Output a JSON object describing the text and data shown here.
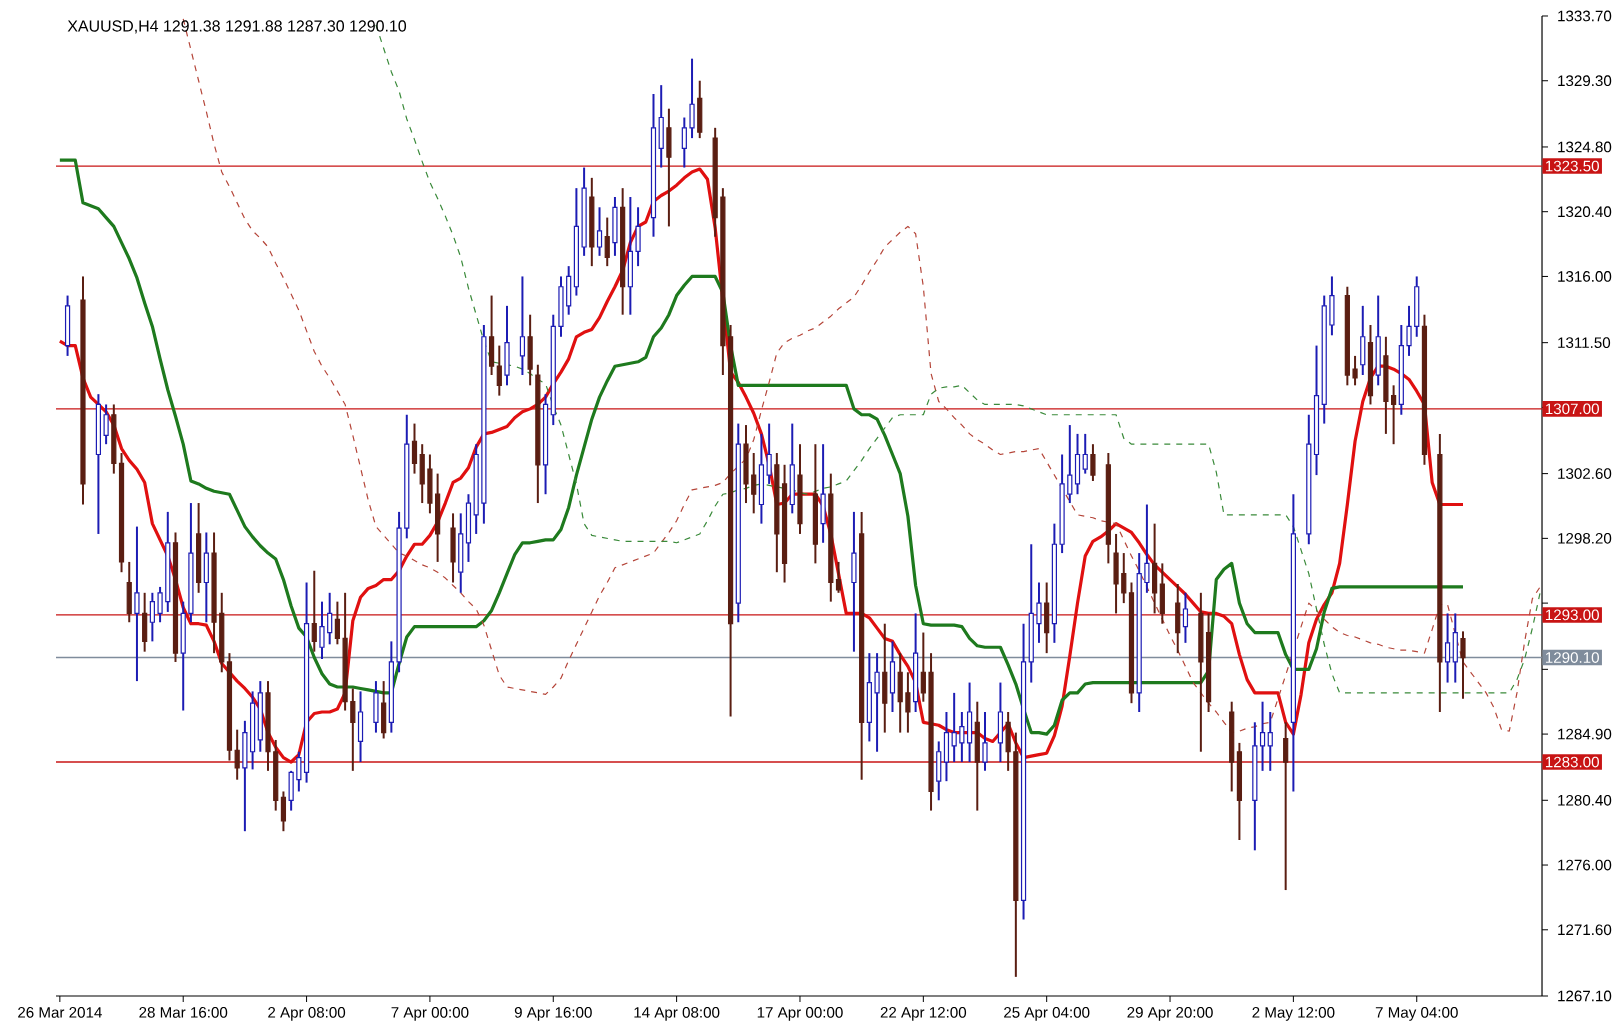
{
  "chart_data": {
    "type": "candlestick",
    "title": "XAUUSD,H4  1291.38 1291.88 1287.30 1290.10",
    "categories": [
      "26 Mar 2014",
      null,
      null,
      null,
      null,
      null,
      null,
      null,
      null,
      null,
      null,
      null,
      null,
      null,
      null,
      null,
      "28 Mar 16:00",
      null,
      null,
      null,
      null,
      null,
      null,
      null,
      null,
      null,
      null,
      null,
      null,
      null,
      null,
      null,
      "2 Apr 08:00",
      null,
      null,
      null,
      null,
      null,
      null,
      null,
      null,
      null,
      null,
      null,
      null,
      null,
      null,
      null,
      "7 Apr 00:00",
      null,
      null,
      null,
      null,
      null,
      null,
      null,
      null,
      null,
      null,
      null,
      null,
      null,
      null,
      null,
      "9 Apr 16:00",
      null,
      null,
      null,
      null,
      null,
      null,
      null,
      null,
      null,
      null,
      null,
      null,
      null,
      null,
      null,
      "14 Apr 08:00",
      null,
      null,
      null,
      null,
      null,
      null,
      null,
      null,
      null,
      null,
      null,
      null,
      null,
      null,
      null,
      "17 Apr 00:00",
      null,
      null,
      null,
      null,
      null,
      null,
      null,
      null,
      null,
      null,
      null,
      null,
      null,
      null,
      null,
      "22 Apr 12:00",
      null,
      null,
      null,
      null,
      null,
      null,
      null,
      null,
      null,
      null,
      null,
      null,
      null,
      null,
      null,
      "25 Apr 04:00",
      null,
      null,
      null,
      null,
      null,
      null,
      null,
      null,
      null,
      null,
      null,
      null,
      null,
      null,
      null,
      "29 Apr 20:00",
      null,
      null,
      null,
      null,
      null,
      null,
      null,
      null,
      null,
      null,
      null,
      null,
      null,
      null,
      null,
      "2 May 12:00",
      null,
      null,
      null,
      null,
      null,
      null,
      null,
      null,
      null,
      null,
      null,
      null,
      null,
      null,
      null,
      "7 May 04:00",
      null,
      null,
      null,
      null,
      null,
      null,
      null,
      null,
      null,
      null,
      null,
      null,
      null,
      null,
      null,
      null
    ],
    "ylim": [
      1267.1,
      1333.7
    ],
    "yticks": [
      {
        "value": 1267.1,
        "label": "1267.10"
      },
      {
        "value": 1271.6,
        "label": "1271.60"
      },
      {
        "value": 1276.0,
        "label": "1276.00"
      },
      {
        "value": 1280.4,
        "label": "1280.40"
      },
      {
        "value": 1284.9,
        "label": "1284.90"
      },
      {
        "value": 1289.3,
        "label": null
      },
      {
        "value": 1293.8,
        "label": null
      },
      {
        "value": 1298.2,
        "label": "1298.20"
      },
      {
        "value": 1302.6,
        "label": "1302.60"
      },
      {
        "value": 1307.1,
        "label": null
      },
      {
        "value": 1311.5,
        "label": "1311.50"
      },
      {
        "value": 1316.0,
        "label": "1316.00"
      },
      {
        "value": 1320.4,
        "label": "1320.40"
      },
      {
        "value": 1324.8,
        "label": "1324.80"
      },
      {
        "value": 1329.3,
        "label": "1329.30"
      },
      {
        "value": 1333.7,
        "label": "1333.70"
      }
    ],
    "ref_lines": [
      {
        "axis": "y",
        "value": 1323.5,
        "label": "1323.50",
        "color": "#c81414"
      },
      {
        "axis": "y",
        "value": 1307.0,
        "label": "1307.00",
        "color": "#c81414"
      },
      {
        "axis": "y",
        "value": 1293.0,
        "label": "1293.00",
        "color": "#c81414"
      },
      {
        "axis": "y",
        "value": 1283.0,
        "label": "1283.00",
        "color": "#c81414"
      },
      {
        "axis": "y",
        "value": 1290.1,
        "label": "1290.10",
        "color": "#7f8c9c"
      }
    ],
    "series": [
      {
        "color": "#1c1cb4",
        "ohlc": [
          null,
          [
            1311.3,
            1314.7,
            1310.6,
            1314.0
          ],
          null,
          null,
          null,
          [
            1303.9,
            1308.0,
            1298.5,
            1307.3
          ],
          [
            1305.2,
            1307.3,
            1304.6,
            1306.6
          ],
          null,
          null,
          null,
          [
            1293.1,
            1299.0,
            1288.5,
            1294.5
          ],
          null,
          [
            1292.5,
            1294.5,
            1291.2,
            1293.9
          ],
          [
            1293.1,
            1294.9,
            1292.5,
            1294.5
          ],
          [
            1293.9,
            1300.0,
            1293.2,
            1297.9
          ],
          null,
          [
            1290.4,
            1293.9,
            1286.5,
            1293.1
          ],
          [
            1293.1,
            1300.6,
            1292.5,
            1297.2
          ],
          null,
          [
            1295.2,
            1298.6,
            1292.5,
            1297.2
          ],
          null,
          null,
          null,
          null,
          [
            1282.6,
            1285.8,
            1278.3,
            1285.0
          ],
          [
            1283.7,
            1287.8,
            1282.5,
            1287.0
          ],
          [
            1284.5,
            1288.5,
            1283.7,
            1287.7
          ],
          null,
          null,
          null,
          [
            1280.4,
            1282.4,
            1279.7,
            1282.3
          ],
          [
            1281.8,
            1283.7,
            1281.0,
            1283.3
          ],
          [
            1282.3,
            1295.2,
            1281.6,
            1292.4
          ],
          null,
          [
            1290.8,
            1293.9,
            1290.0,
            1292.2
          ],
          [
            1291.8,
            1294.5,
            1291.0,
            1293.1
          ],
          null,
          null,
          null,
          [
            1284.4,
            1287.8,
            1283.0,
            1286.4
          ],
          null,
          [
            1285.7,
            1288.5,
            1285.0,
            1287.7
          ],
          null,
          [
            1285.7,
            1291.2,
            1285.0,
            1289.8
          ],
          [
            1289.8,
            1300.0,
            1289.1,
            1298.9
          ],
          [
            1298.9,
            1306.6,
            1298.2,
            1304.6
          ],
          null,
          null,
          null,
          null,
          null,
          null,
          [
            1295.9,
            1299.9,
            1294.5,
            1298.5
          ],
          [
            1297.9,
            1301.2,
            1296.6,
            1300.6
          ],
          [
            1299.8,
            1304.6,
            1298.5,
            1303.9
          ],
          [
            1300.6,
            1312.7,
            1299.2,
            1311.9
          ],
          null,
          null,
          [
            1309.3,
            1314.0,
            1308.6,
            1311.5
          ],
          null,
          [
            1310.6,
            1316.0,
            1309.3,
            1311.9
          ],
          null,
          null,
          [
            1303.2,
            1308.0,
            1301.2,
            1307.3
          ],
          [
            1306.6,
            1313.4,
            1305.9,
            1312.6
          ],
          [
            1312.6,
            1316.0,
            1311.9,
            1315.3
          ],
          [
            1314.0,
            1316.7,
            1313.4,
            1316.0
          ],
          [
            1315.3,
            1322.0,
            1314.7,
            1319.4
          ],
          [
            1318.0,
            1323.4,
            1317.4,
            1322.0
          ],
          null,
          [
            1318.0,
            1320.7,
            1317.4,
            1319.1
          ],
          null,
          [
            1318.3,
            1321.4,
            1317.4,
            1320.7
          ],
          null,
          [
            1315.3,
            1321.4,
            1313.4,
            1317.7
          ],
          [
            1317.7,
            1320.7,
            1316.7,
            1319.4
          ],
          null,
          [
            1320.0,
            1328.4,
            1318.7,
            1326.1
          ],
          [
            1324.7,
            1329.0,
            1323.4,
            1326.8
          ],
          null,
          null,
          [
            1324.7,
            1326.8,
            1323.4,
            1326.1
          ],
          [
            1326.1,
            1330.8,
            1325.4,
            1327.7
          ],
          null,
          null,
          null,
          null,
          null,
          [
            1293.8,
            1306.0,
            1292.5,
            1304.6
          ],
          null,
          null,
          [
            1300.5,
            1305.3,
            1299.2,
            1303.2
          ],
          [
            1302.5,
            1306.0,
            1301.9,
            1303.9
          ],
          null,
          null,
          [
            1300.5,
            1306.0,
            1299.9,
            1303.2
          ],
          null,
          null,
          null,
          [
            1299.2,
            1304.6,
            1297.9,
            1301.2
          ],
          null,
          null,
          null,
          [
            1295.2,
            1300.0,
            1290.5,
            1297.2
          ],
          null,
          [
            1285.7,
            1290.4,
            1284.4,
            1288.4
          ],
          [
            1287.7,
            1290.4,
            1283.7,
            1289.1
          ],
          null,
          [
            1287.7,
            1291.2,
            1286.4,
            1289.8
          ],
          null,
          null,
          [
            1287.1,
            1293.1,
            1286.4,
            1290.4
          ],
          null,
          null,
          [
            1281.7,
            1284.4,
            1280.4,
            1283.7
          ],
          [
            1283.0,
            1286.4,
            1281.7,
            1285.0
          ],
          [
            1284.1,
            1287.7,
            1283.0,
            1285.0
          ],
          [
            1284.3,
            1286.4,
            1283.0,
            1285.4
          ],
          [
            1284.3,
            1288.4,
            1283.0,
            1286.4
          ],
          null,
          [
            1283.0,
            1286.4,
            1282.4,
            1284.3
          ],
          null,
          [
            1284.3,
            1288.4,
            1283.0,
            1286.4
          ],
          null,
          null,
          [
            1273.6,
            1292.4,
            1272.3,
            1289.8
          ],
          [
            1289.8,
            1297.8,
            1288.4,
            1293.1
          ],
          [
            1292.4,
            1295.2,
            1291.1,
            1293.8
          ],
          null,
          [
            1292.4,
            1299.2,
            1291.1,
            1297.8
          ],
          [
            1297.8,
            1303.9,
            1297.2,
            1301.9
          ],
          [
            1301.2,
            1305.9,
            1300.6,
            1302.5
          ],
          [
            1301.9,
            1305.3,
            1301.2,
            1303.9
          ],
          [
            1302.9,
            1305.3,
            1302.6,
            1303.9
          ],
          null,
          null,
          null,
          null,
          null,
          null,
          [
            1287.7,
            1297.2,
            1286.4,
            1295.8
          ],
          [
            1295.2,
            1300.5,
            1294.5,
            1296.5
          ],
          null,
          null,
          null,
          null,
          [
            1292.2,
            1294.5,
            1291.1,
            1293.4
          ],
          null,
          null,
          null,
          null,
          null,
          null,
          null,
          null,
          [
            1280.4,
            1285.7,
            1277.0,
            1284.1
          ],
          [
            1284.1,
            1287.1,
            1282.4,
            1285.0
          ],
          [
            1284.1,
            1286.4,
            1282.4,
            1285.0
          ],
          null,
          null,
          [
            1285.7,
            1301.2,
            1281.0,
            1298.5
          ],
          null,
          [
            1298.5,
            1306.6,
            1297.8,
            1304.6
          ],
          [
            1303.9,
            1311.3,
            1302.5,
            1307.9
          ],
          [
            1307.3,
            1314.7,
            1306.0,
            1314.0
          ],
          [
            1312.7,
            1316.0,
            1312.0,
            1314.7
          ],
          null,
          null,
          null,
          [
            1310.0,
            1314.0,
            1309.3,
            1311.9
          ],
          null,
          [
            1309.3,
            1314.7,
            1308.6,
            1311.9
          ],
          null,
          null,
          [
            1307.3,
            1312.7,
            1306.6,
            1311.3
          ],
          [
            1311.3,
            1314.0,
            1310.6,
            1312.6
          ],
          [
            1312.6,
            1316.0,
            1311.9,
            1315.3
          ],
          null,
          null,
          null,
          [
            1289.8,
            1293.1,
            1288.4,
            1291.1
          ],
          [
            1289.8,
            1293.1,
            1288.4,
            1291.8
          ],
          null,
          null,
          null,
          null,
          null,
          null,
          null,
          null,
          null,
          null,
          null
        ]
      },
      {
        "color": "#5a1e12",
        "ohlc": [
          null,
          null,
          null,
          [
            1314.4,
            1316.0,
            1300.5,
            1301.9
          ],
          null,
          null,
          null,
          [
            1306.6,
            1307.3,
            1302.6,
            1303.3
          ],
          [
            1303.3,
            1304.0,
            1295.9,
            1296.6
          ],
          [
            1295.2,
            1296.6,
            1292.5,
            1293.1
          ],
          null,
          [
            1293.1,
            1294.5,
            1290.5,
            1291.2
          ],
          null,
          null,
          null,
          [
            1297.9,
            1298.6,
            1289.8,
            1290.4
          ],
          null,
          null,
          [
            1298.5,
            1300.6,
            1294.5,
            1295.2
          ],
          null,
          [
            1297.2,
            1298.6,
            1290.4,
            1292.5
          ],
          [
            1293.1,
            1294.5,
            1289.1,
            1289.8
          ],
          [
            1289.8,
            1290.4,
            1283.1,
            1283.8
          ],
          [
            1283.8,
            1285.2,
            1281.8,
            1282.6
          ],
          null,
          null,
          null,
          [
            1287.7,
            1288.5,
            1282.4,
            1283.7
          ],
          [
            1283.7,
            1284.5,
            1279.7,
            1280.4
          ],
          [
            1280.6,
            1281.0,
            1278.3,
            1279.0
          ],
          null,
          null,
          null,
          [
            1292.4,
            1296.0,
            1290.5,
            1291.2
          ],
          null,
          null,
          [
            1292.7,
            1293.9,
            1291.0,
            1291.4
          ],
          [
            1291.4,
            1294.5,
            1286.5,
            1287.1
          ],
          [
            1287.1,
            1288.0,
            1282.4,
            1285.7
          ],
          null,
          null,
          null,
          [
            1287.0,
            1288.5,
            1284.6,
            1285.0
          ],
          null,
          null,
          null,
          [
            1304.8,
            1306.0,
            1302.6,
            1303.3
          ],
          [
            1303.9,
            1304.6,
            1300.6,
            1301.9
          ],
          [
            1302.9,
            1303.9,
            1299.9,
            1300.6
          ],
          [
            1301.2,
            1302.6,
            1296.6,
            1298.5
          ],
          null,
          [
            1298.9,
            1299.9,
            1295.2,
            1296.6
          ],
          null,
          null,
          null,
          null,
          [
            1311.9,
            1314.7,
            1309.3,
            1309.9
          ],
          [
            1309.9,
            1311.3,
            1307.9,
            1308.6
          ],
          null,
          null,
          null,
          [
            1311.9,
            1313.4,
            1308.6,
            1309.7
          ],
          [
            1309.3,
            1310.0,
            1300.6,
            1303.2
          ],
          null,
          null,
          null,
          null,
          null,
          null,
          [
            1321.4,
            1322.7,
            1316.7,
            1318.0
          ],
          null,
          [
            1318.7,
            1320.0,
            1316.7,
            1317.3
          ],
          null,
          [
            1320.7,
            1322.0,
            1313.4,
            1315.3
          ],
          null,
          null,
          null,
          null,
          null,
          [
            1326.1,
            1327.4,
            1319.4,
            1324.1
          ],
          null,
          null,
          null,
          [
            1328.1,
            1329.3,
            1325.4,
            1325.8
          ],
          null,
          [
            1325.4,
            1326.1,
            1318.7,
            1320.0
          ],
          [
            1321.4,
            1322.0,
            1309.3,
            1311.3
          ],
          [
            1311.9,
            1312.7,
            1286.1,
            1292.4
          ],
          null,
          [
            1304.6,
            1305.9,
            1300.6,
            1301.9
          ],
          [
            1302.5,
            1304.0,
            1299.9,
            1301.2
          ],
          null,
          null,
          [
            1303.2,
            1304.0,
            1295.9,
            1298.5
          ],
          [
            1301.9,
            1303.2,
            1295.2,
            1296.5
          ],
          null,
          [
            1302.5,
            1304.6,
            1298.5,
            1299.2
          ],
          null,
          [
            1301.2,
            1304.6,
            1296.5,
            1297.8
          ],
          null,
          [
            1301.2,
            1302.6,
            1293.9,
            1295.2
          ],
          [
            1295.4,
            1296.6,
            1294.5,
            1294.7
          ],
          null,
          null,
          [
            1298.5,
            1300.0,
            1281.8,
            1285.7
          ],
          null,
          null,
          [
            1289.1,
            1292.4,
            1285.0,
            1287.0
          ],
          null,
          [
            1289.1,
            1290.4,
            1285.0,
            1287.1
          ],
          [
            1287.7,
            1289.1,
            1285.0,
            1286.4
          ],
          null,
          [
            1289.1,
            1291.8,
            1287.1,
            1287.7
          ],
          [
            1289.1,
            1290.4,
            1279.7,
            1281.0
          ],
          null,
          null,
          null,
          null,
          null,
          [
            1285.7,
            1287.1,
            1279.7,
            1283.0
          ],
          null,
          null,
          null,
          [
            1285.7,
            1286.4,
            1282.4,
            1283.7
          ],
          [
            1283.7,
            1285.0,
            1268.4,
            1273.6
          ],
          null,
          null,
          null,
          [
            1293.8,
            1295.2,
            1290.4,
            1291.8
          ],
          null,
          null,
          null,
          null,
          null,
          [
            1303.9,
            1304.6,
            1302.1,
            1302.5
          ],
          null,
          [
            1303.2,
            1304.0,
            1296.5,
            1297.8
          ],
          [
            1297.2,
            1298.5,
            1293.1,
            1295.1
          ],
          [
            1295.8,
            1297.2,
            1293.8,
            1294.5
          ],
          [
            1294.5,
            1295.2,
            1287.0,
            1287.7
          ],
          null,
          null,
          [
            1296.5,
            1299.2,
            1293.1,
            1294.5
          ],
          [
            1295.1,
            1296.5,
            1292.4,
            1293.1
          ],
          null,
          [
            1293.8,
            1295.1,
            1290.4,
            1291.8
          ],
          null,
          null,
          [
            1293.1,
            1294.5,
            1283.7,
            1289.8
          ],
          [
            1291.8,
            1293.1,
            1286.4,
            1287.1
          ],
          null,
          null,
          [
            1286.4,
            1287.1,
            1281.0,
            1283.0
          ],
          [
            1283.7,
            1284.3,
            1277.7,
            1280.4
          ],
          null,
          null,
          null,
          null,
          null,
          [
            1284.6,
            1285.7,
            1274.3,
            1283.0
          ],
          null,
          null,
          null,
          null,
          null,
          null,
          null,
          [
            1314.7,
            1315.3,
            1308.6,
            1309.3
          ],
          [
            1309.7,
            1310.6,
            1308.6,
            1309.1
          ],
          null,
          [
            1311.5,
            1312.7,
            1307.3,
            1307.9
          ],
          null,
          [
            1310.6,
            1311.9,
            1305.3,
            1307.5
          ],
          [
            1307.9,
            1308.6,
            1304.6,
            1307.3
          ],
          null,
          null,
          null,
          [
            1312.6,
            1313.4,
            1303.2,
            1303.9
          ],
          null,
          [
            1303.9,
            1305.3,
            1286.4,
            1289.8
          ],
          null,
          null,
          [
            1291.38,
            1291.88,
            1287.3,
            1290.1
          ],
          null,
          null,
          null,
          null,
          null,
          null,
          null,
          null,
          null,
          null
        ]
      },
      {
        "type": "line",
        "color": "#e01010",
        "values": [
          1311.6,
          1311.3,
          1311.3,
          1309.1,
          1307.8,
          1307.3,
          1306.8,
          1305.9,
          1304.3,
          1303.5,
          1302.9,
          1302.0,
          1299.2,
          1298.1,
          1297.0,
          1295.4,
          1293.5,
          1292.4,
          1292.4,
          1292.3,
          1291.2,
          1289.7,
          1289.1,
          1288.5,
          1288.0,
          1287.4,
          1286.6,
          1285.0,
          1284.0,
          1283.3,
          1283.0,
          1283.5,
          1285.7,
          1286.3,
          1286.4,
          1286.4,
          1286.6,
          1287.7,
          1292.6,
          1294.2,
          1294.8,
          1295.0,
          1295.4,
          1295.4,
          1296.0,
          1297.0,
          1297.8,
          1297.8,
          1298.4,
          1299.3,
          1300.6,
          1302.0,
          1302.3,
          1303.0,
          1304.4,
          1305.3,
          1305.4,
          1305.6,
          1305.8,
          1306.4,
          1306.8,
          1307.0,
          1307.3,
          1307.8,
          1308.7,
          1309.5,
          1310.4,
          1311.9,
          1312.2,
          1312.4,
          1313.2,
          1314.3,
          1315.3,
          1316.4,
          1318.3,
          1319.4,
          1319.7,
          1321.1,
          1321.5,
          1321.8,
          1322.2,
          1322.7,
          1323.1,
          1323.3,
          1322.6,
          1319.3,
          null,
          1309.5,
          1308.8,
          1307.8,
          1306.7,
          1305.3,
          1303.2,
          1300.5,
          1300.6,
          1301.2,
          1301.2,
          1301.2,
          1301.2,
          1300.4,
          1298.5,
          1295.8,
          1293.1,
          1293.1,
          1293.1,
          1292.8,
          1292.1,
          1291.4,
          1291.2,
          1290.3,
          1289.5,
          1288.4,
          1285.7,
          1285.6,
          1285.5,
          1285.2,
          1285.0,
          1285.0,
          1285.0,
          1285.0,
          1284.6,
          1284.4,
          1285.0,
          1285.6,
          1284.3,
          1283.3,
          1283.4,
          1283.5,
          1283.6,
          1284.8,
          1286.8,
          1290.2,
          1293.8,
          1297.0,
          1298.0,
          1298.3,
          1298.7,
          1299.2,
          1298.9,
          1298.6,
          1297.9,
          1297.1,
          1296.4,
          1295.9,
          1295.4,
          1294.9,
          1294.4,
          1293.8,
          1293.2,
          1293.1,
          1293.1,
          1292.9,
          1292.4,
          1290.3,
          1288.6,
          1287.7,
          1287.7,
          1287.7,
          1287.7,
          1285.7,
          1284.9,
          1287.6,
          1291.1,
          1292.7,
          1293.7,
          1294.5,
          1296.5,
          1300.5,
          1304.8,
          1307.5,
          1309.1,
          1309.9,
          1309.9,
          1309.7,
          1309.4,
          1309.0,
          1308.2,
          1307.3,
          1302.0,
          1300.5,
          1300.5,
          1300.5,
          1300.5,
          null,
          null,
          null,
          null,
          null,
          null,
          null,
          null,
          null,
          null
        ]
      },
      {
        "type": "line",
        "color": "#1e7a1e",
        "values": [
          1323.9,
          1323.9,
          1323.9,
          1321.0,
          1320.8,
          1320.6,
          1320.0,
          1319.4,
          1318.3,
          1317.2,
          1315.9,
          1314.2,
          1312.6,
          1310.4,
          1308.3,
          1306.5,
          1304.6,
          1302.1,
          1301.9,
          1301.6,
          1301.4,
          1301.3,
          1301.2,
          1300.1,
          1299.0,
          1298.3,
          1297.7,
          1297.2,
          1296.8,
          1295.4,
          1293.6,
          1292.1,
          1291.5,
          1290.1,
          1289.0,
          1288.3,
          1288.1,
          1288.1,
          1288.1,
          1288.0,
          1287.9,
          1287.8,
          1287.7,
          1287.7,
          1289.7,
          1291.5,
          1292.2,
          1292.2,
          1292.2,
          1292.2,
          1292.2,
          1292.2,
          1292.2,
          1292.2,
          1292.2,
          1292.6,
          1293.3,
          1294.5,
          1295.8,
          1297.1,
          1297.9,
          1297.9,
          1298.0,
          1298.1,
          1298.1,
          1298.8,
          1300.3,
          1302.5,
          1304.4,
          1306.3,
          1307.8,
          1308.9,
          1309.9,
          1310.0,
          1310.1,
          1310.2,
          1310.5,
          1311.9,
          1312.5,
          1313.4,
          1314.7,
          1315.4,
          1316.0,
          1316.0,
          1316.0,
          1316.0,
          1314.9,
          1311.3,
          1308.6,
          1308.6,
          1308.6,
          1308.6,
          1308.6,
          1308.6,
          1308.6,
          1308.6,
          1308.6,
          1308.6,
          1308.6,
          1308.6,
          1308.6,
          1308.6,
          1308.6,
          1307.0,
          1306.6,
          1306.6,
          1306.3,
          1305.2,
          1303.9,
          1302.6,
          1299.7,
          1295.0,
          1292.4,
          1292.3,
          1292.3,
          1292.3,
          1292.3,
          1292.2,
          1291.4,
          1290.9,
          1290.8,
          1290.8,
          1290.8,
          1289.6,
          1288.3,
          1286.6,
          1285.0,
          1285.0,
          1284.9,
          1285.5,
          1287.2,
          1287.7,
          1287.7,
          1288.3,
          1288.4,
          1288.4,
          1288.4,
          1288.4,
          1288.4,
          1288.4,
          1288.4,
          1288.4,
          1288.4,
          1288.4,
          1288.4,
          1288.4,
          1288.4,
          1288.4,
          1288.4,
          1289.2,
          1295.4,
          1296.1,
          1296.5,
          1293.8,
          1292.4,
          1291.8,
          1291.8,
          1291.8,
          1291.8,
          1290.3,
          1289.3,
          1289.3,
          1289.3,
          1290.7,
          1293.2,
          1294.8,
          1294.9,
          1294.9,
          1294.9,
          1294.9,
          1294.9,
          1294.9,
          1294.9,
          1294.9,
          1294.9,
          1294.9,
          1294.9,
          1294.9,
          1294.9,
          1294.9,
          1294.9,
          1294.9,
          1294.9,
          null,
          null,
          null,
          null,
          null,
          null,
          null,
          null,
          null,
          null
        ]
      },
      {
        "type": "line",
        "color": "#b5463a",
        "line_style": "dashed",
        "values": [
          null,
          null,
          null,
          null,
          null,
          null,
          null,
          null,
          null,
          null,
          null,
          null,
          null,
          null,
          null,
          null,
          1333.5,
          1331.4,
          1329.3,
          1327.2,
          1325.0,
          1323.1,
          1322.1,
          1321.0,
          1319.9,
          1319.1,
          1318.6,
          1318.0,
          1316.9,
          1315.9,
          1314.8,
          1313.7,
          1312.3,
          1310.9,
          1309.9,
          1309.1,
          1308.2,
          1307.3,
          1305.2,
          1303.0,
          1300.8,
          1299.0,
          1298.4,
          1297.8,
          1297.2,
          1297.0,
          1296.7,
          1296.4,
          1296.2,
          1295.9,
          1295.5,
          1295.0,
          1294.5,
          1293.9,
          1293.4,
          1292.3,
          1290.6,
          1288.9,
          1288.1,
          1288.0,
          1287.9,
          1287.8,
          1287.7,
          1287.6,
          1288.1,
          1288.7,
          1289.9,
          1291.0,
          1292.1,
          1293.2,
          1294.3,
          1295.2,
          1296.2,
          1296.4,
          1296.6,
          1296.8,
          1297.0,
          1297.2,
          1297.9,
          1298.6,
          1299.4,
          1300.5,
          1301.5,
          1301.6,
          1301.7,
          1301.8,
          1302.0,
          1302.6,
          1303.1,
          1303.6,
          1304.9,
          1306.9,
          1308.8,
          1310.8,
          1311.5,
          1311.8,
          1312.0,
          1312.3,
          1312.5,
          1312.9,
          1313.3,
          1313.8,
          1314.2,
          1314.6,
          1315.4,
          1316.3,
          1317.1,
          1318.0,
          1318.5,
          1319.0,
          1319.4,
          1318.9,
          1315.3,
          1309.4,
          1307.5,
          1307.0,
          1306.4,
          1305.9,
          1305.3,
          1304.9,
          1304.6,
          1304.2,
          1303.9,
          1304.0,
          1304.1,
          1304.1,
          1304.2,
          1304.3,
          1303.4,
          1302.5,
          1301.6,
          1300.7,
          1299.8,
          1299.7,
          1299.6,
          1299.4,
          1299.3,
          1299.2,
          1298.1,
          1297.0,
          1296.0,
          1294.9,
          1293.8,
          1292.7,
          1291.6,
          1290.6,
          1289.5,
          1288.4,
          1287.7,
          1287.0,
          1286.4,
          1285.7,
          1285.0,
          1285.1,
          1285.3,
          1285.4,
          1285.6,
          1285.7,
          1287.3,
          1288.9,
          null,
          1292.2,
          1293.8,
          1293.3,
          1292.7,
          1292.2,
          1291.8,
          1291.6,
          1291.5,
          1291.3,
          1291.1,
          1291.0,
          1290.8,
          1290.7,
          1290.6,
          1290.6,
          1290.5,
          1290.4,
          1292.0,
          1293.7,
          1293.7,
          1291.7,
          1289.8,
          1289.1,
          1288.4,
          1287.7,
          1286.7,
          1285.2,
          1285.1,
          1287.7,
          1291.2,
          1294.1,
          1294.9
        ]
      },
      {
        "type": "line",
        "color": "#3a8a3a",
        "line_style": "dashed",
        "values": [
          null,
          null,
          null,
          null,
          null,
          null,
          null,
          null,
          null,
          null,
          null,
          null,
          null,
          null,
          null,
          null,
          null,
          null,
          null,
          null,
          null,
          null,
          null,
          null,
          null,
          null,
          null,
          null,
          null,
          null,
          null,
          null,
          null,
          null,
          null,
          null,
          null,
          null,
          null,
          null,
          null,
          1333.1,
          1331.5,
          1329.9,
          1328.6,
          1326.7,
          1325.3,
          1323.8,
          1322.4,
          1321.3,
          1320.1,
          1318.8,
          1317.3,
          1315.2,
          1313.4,
          1311.6,
          1310.2,
          1310.1,
          1310.0,
          1309.9,
          1309.7,
          1309.4,
          1309.0,
          1308.7,
          1307.2,
          1305.9,
          1303.9,
          1301.9,
          1299.2,
          1298.4,
          1298.3,
          1298.2,
          1298.1,
          1298.0,
          1298.0,
          1298.0,
          1298.0,
          1298.0,
          1298.0,
          1298.0,
          1297.9,
          1298.1,
          1298.3,
          1298.5,
          1299.4,
          1300.4,
          1301.2,
          1301.3,
          1301.5,
          1301.6,
          1301.8,
          1301.9,
          1301.8,
          1301.7,
          1301.6,
          1301.5,
          1301.3,
          1301.2,
          1301.4,
          1301.6,
          1301.7,
          1301.9,
          1302.1,
          1302.8,
          1303.5,
          1304.3,
          1305.0,
          1305.7,
          1306.4,
          1306.6,
          1306.6,
          1306.6,
          1306.6,
          1308.0,
          1308.4,
          1308.5,
          1308.5,
          1308.6,
          1308.1,
          1307.6,
          1307.3,
          1307.3,
          1307.3,
          1307.3,
          1307.3,
          1307.2,
          1307.0,
          1306.8,
          1306.6,
          1306.6,
          1306.6,
          1306.6,
          1306.6,
          1306.6,
          1306.6,
          1306.6,
          1306.6,
          1306.6,
          1305.0,
          1304.6,
          1304.6,
          1304.6,
          1304.6,
          1304.6,
          1304.6,
          1304.6,
          1304.6,
          1304.6,
          1304.6,
          1304.6,
          1302.7,
          1299.8,
          1299.8,
          1299.8,
          1299.8,
          1299.8,
          1299.8,
          1299.8,
          1299.8,
          1299.8,
          1299.0,
          1297.4,
          1295.8,
          1293.4,
          1291.0,
          1289.0,
          1287.7,
          1287.7,
          1287.7,
          1287.7,
          1287.7,
          1287.7,
          1287.7,
          1287.7,
          1287.7,
          1287.7,
          1287.7,
          1287.7,
          1287.7,
          1287.7,
          1287.7,
          1287.7,
          1287.7,
          1287.7,
          1287.7,
          1287.7,
          1287.7,
          1287.7,
          1287.7,
          1288.6,
          1290.0,
          1292.1,
          1294.5
        ]
      }
    ]
  }
}
